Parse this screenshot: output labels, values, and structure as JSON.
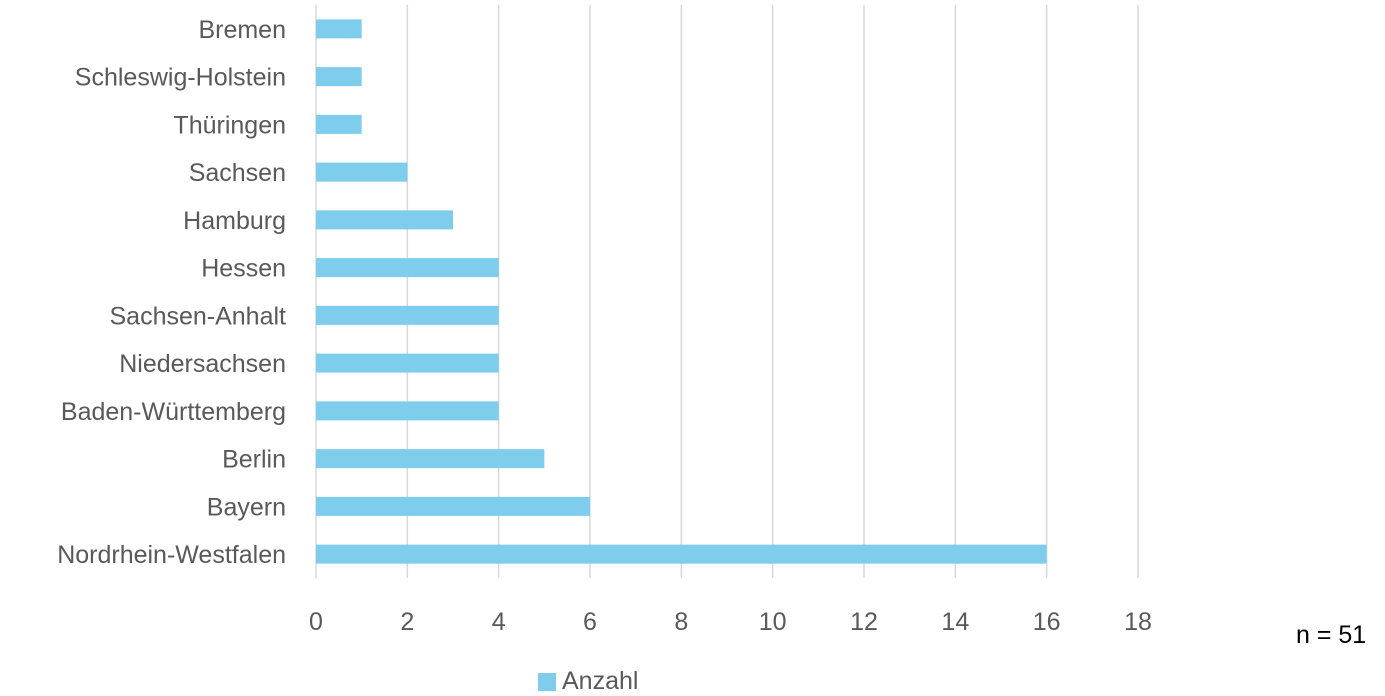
{
  "chart_data": {
    "type": "bar",
    "orientation": "horizontal",
    "categories": [
      "Bremen",
      "Schleswig-Holstein",
      "Thüringen",
      "Sachsen",
      "Hamburg",
      "Hessen",
      "Sachsen-Anhalt",
      "Niedersachsen",
      "Baden-Württemberg",
      "Berlin",
      "Bayern",
      "Nordrhein-Westfalen"
    ],
    "series": [
      {
        "name": "Anzahl",
        "values": [
          1,
          1,
          1,
          2,
          3,
          4,
          4,
          4,
          4,
          5,
          6,
          16
        ],
        "color": "#7ecdec"
      }
    ],
    "xlim": [
      0,
      18
    ],
    "xticks": [
      "0",
      "2",
      "4",
      "6",
      "8",
      "10",
      "12",
      "14",
      "16",
      "18"
    ],
    "grid": "vertical",
    "legend": "bottom",
    "title": "",
    "xlabel": "",
    "ylabel": ""
  },
  "annotation": {
    "n_label": "n = 51"
  }
}
